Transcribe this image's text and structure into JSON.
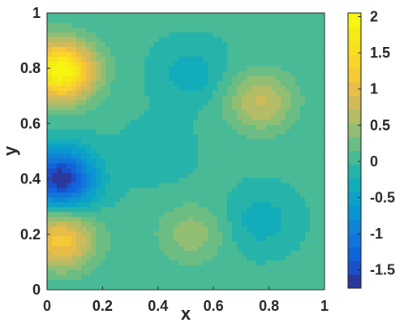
{
  "chart_data": {
    "type": "heatmap",
    "subtype": "filled-contour",
    "title": "",
    "xlabel": "x",
    "ylabel": "y",
    "xlim": [
      0,
      1
    ],
    "ylim": [
      0,
      1
    ],
    "x_ticks": [
      "0",
      "0.2",
      "0.4",
      "0.6",
      "0.8",
      "1"
    ],
    "y_ticks": [
      "0",
      "0.2",
      "0.4",
      "0.6",
      "0.8",
      "1"
    ],
    "colorbar": {
      "colormap": "parula",
      "range": [
        -1.75,
        2.05
      ],
      "ticks": [
        "-1.5",
        "-1",
        "-0.5",
        "0",
        "0.5",
        "1",
        "1.5",
        "2"
      ],
      "tick_values": [
        -1.5,
        -1,
        -0.5,
        0,
        0.5,
        1,
        1.5,
        2
      ]
    },
    "contour_levels": 20,
    "baseline_value": 0,
    "features": [
      {
        "x": 0.05,
        "y": 0.79,
        "value": 2.0
      },
      {
        "x": 0.05,
        "y": 0.4,
        "value": -1.7
      },
      {
        "x": 0.05,
        "y": 0.18,
        "value": 1.2
      },
      {
        "x": 0.77,
        "y": 0.68,
        "value": 0.75
      },
      {
        "x": 0.52,
        "y": 0.2,
        "value": 0.45
      },
      {
        "x": 0.77,
        "y": 0.25,
        "value": -0.35
      },
      {
        "x": 0.52,
        "y": 0.78,
        "value": -0.35
      },
      {
        "x": 0.4,
        "y": 0.5,
        "value": -0.2
      }
    ]
  }
}
